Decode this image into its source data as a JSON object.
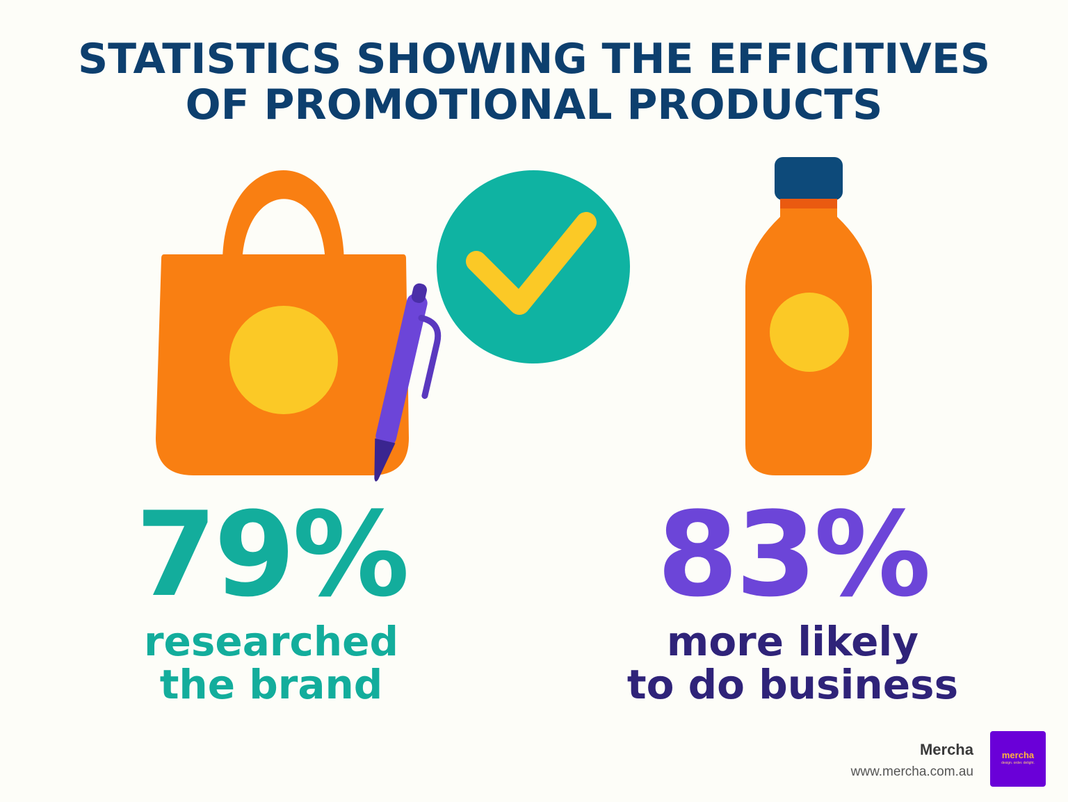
{
  "title": {
    "line1": "STATISTICS SHOWING THE EFFICITIVES",
    "line2": "OF PROMOTIONAL PRODUCTS"
  },
  "stats": [
    {
      "value": "79%",
      "label_line1": "researched",
      "label_line2": "the brand",
      "color": "#13ad9c"
    },
    {
      "value": "83%",
      "label_line1": "more likely",
      "label_line2": "to do business",
      "value_color": "#6c45d8",
      "label_color": "#2f2379"
    }
  ],
  "icons": [
    "tote-bag-icon",
    "pen-icon",
    "checkmark-icon",
    "water-bottle-icon"
  ],
  "brand": {
    "name": "Mercha",
    "url": "www.mercha.com.au",
    "logo_text": "mercha",
    "logo_tagline": "design. order. delight."
  },
  "colors": {
    "title": "#0d3f6e",
    "orange": "#f97f12",
    "yellow": "#fbc926",
    "teal": "#0fb3a2",
    "purple": "#6c45d8",
    "navy": "#0d4a7a",
    "logo_bg": "#6a00d8"
  }
}
